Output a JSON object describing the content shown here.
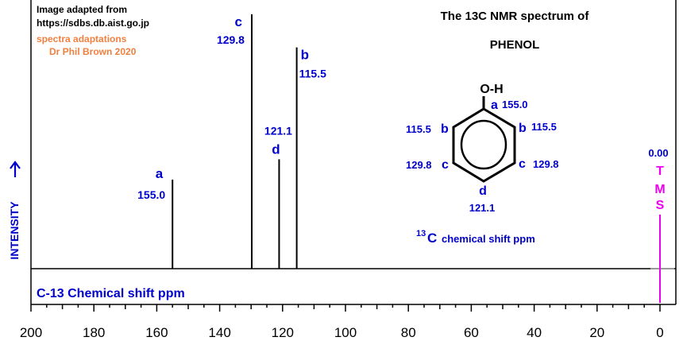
{
  "credits": {
    "line1": "Image adapted from",
    "line2": "https://sdbs.db.aist.go.jp",
    "line3": "spectra adaptations",
    "line4": "Dr Phil Brown 2020"
  },
  "title": {
    "line1": "The 13C NMR spectrum of",
    "line2": "PHENOL"
  },
  "ylabel": "INTENSITY",
  "xlabel": "C-13 Chemical shift ppm",
  "axis_note": {
    "sup": "13",
    "main": "C",
    "rest": "  chemical shift ppm"
  },
  "structure": {
    "oh": "O-H",
    "a": {
      "letter": "a",
      "value": "155.0"
    },
    "b_left": {
      "letter": "b",
      "value": "115.5"
    },
    "b_right": {
      "letter": "b",
      "value": "115.5"
    },
    "c_left": {
      "letter": "c",
      "value": "129.8"
    },
    "c_right": {
      "letter": "c",
      "value": "129.8"
    },
    "d": {
      "letter": "d",
      "value": "121.1"
    }
  },
  "tms": {
    "value": "0.00",
    "letters": [
      "T",
      "M",
      "S"
    ]
  },
  "colors": {
    "label": "#0000cc",
    "tms": "#ee00ee",
    "credit_accent": "#f08040",
    "line": "#000000"
  },
  "chart_data": {
    "type": "bar",
    "xlim": [
      200,
      0
    ],
    "x_ticks": [
      200,
      180,
      160,
      140,
      120,
      100,
      80,
      60,
      40,
      20,
      0
    ],
    "peaks": [
      {
        "label": "a",
        "ppm": 155.0,
        "height": 0.35,
        "value_text": "155.0"
      },
      {
        "label": "c",
        "ppm": 129.8,
        "height": 1.0,
        "value_text": "129.8"
      },
      {
        "label": "d",
        "ppm": 121.1,
        "height": 0.43,
        "value_text": "121.1"
      },
      {
        "label": "b",
        "ppm": 115.5,
        "height": 0.87,
        "value_text": "115.5"
      },
      {
        "label": "TMS",
        "ppm": 0.0,
        "height": 0.0,
        "value_text": "0.00"
      }
    ]
  }
}
